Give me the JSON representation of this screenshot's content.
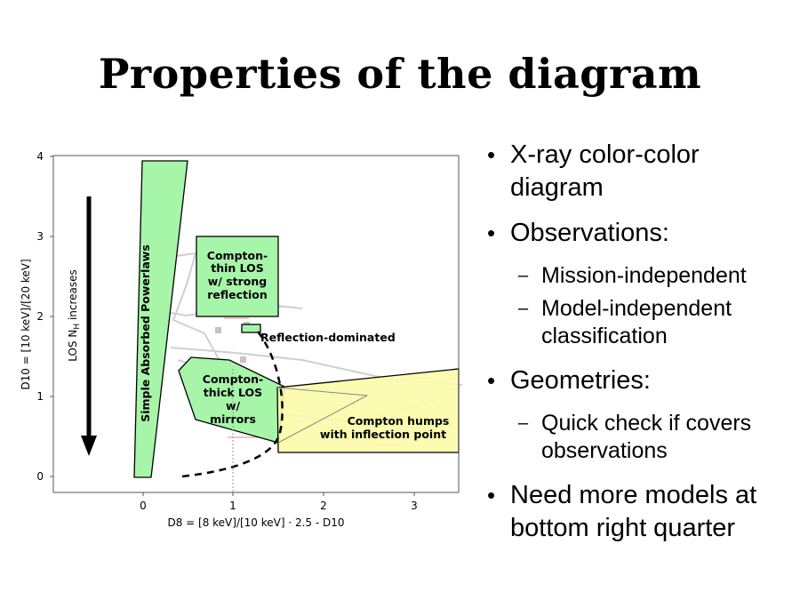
{
  "slide": {
    "title": "Properties of the diagram"
  },
  "bullets": {
    "b1": "X-ray color-color diagram",
    "b2": "Observations:",
    "b2_sub1": "Mission-independent",
    "b2_sub2": "Model-independent classification",
    "b3": "Geometries:",
    "b3_sub1": "Quick check if covers observations",
    "b4": "Need more models at bottom right quarter"
  },
  "figure": {
    "xlabel": "D8 = [8 keV]/[10 keV] · 2.5 - D10",
    "ylabel": "D10 = [10 keV]/[20 keV]",
    "xticks": [
      "0",
      "1",
      "2",
      "3"
    ],
    "yticks": [
      "0",
      "1",
      "2",
      "3",
      "4"
    ],
    "arrow_label": "LOS N",
    "arrow_label_sub": "H",
    "arrow_label_rest": " increases",
    "regions": {
      "simple_absorbed": "Simple Absorbed Powerlaws",
      "compton_thin": [
        "Compton-",
        "thin LOS",
        "w/ strong",
        "reflection"
      ],
      "reflection_dominated": "Reflection-dominated",
      "compton_thick": [
        "Compton-",
        "thick LOS",
        "w/",
        "mirrors"
      ],
      "compton_humps": [
        "Compton humps",
        "with inflection point"
      ]
    },
    "colors": {
      "green_region": "#a7f5a9",
      "yellow_region": "#fbfba8"
    }
  }
}
